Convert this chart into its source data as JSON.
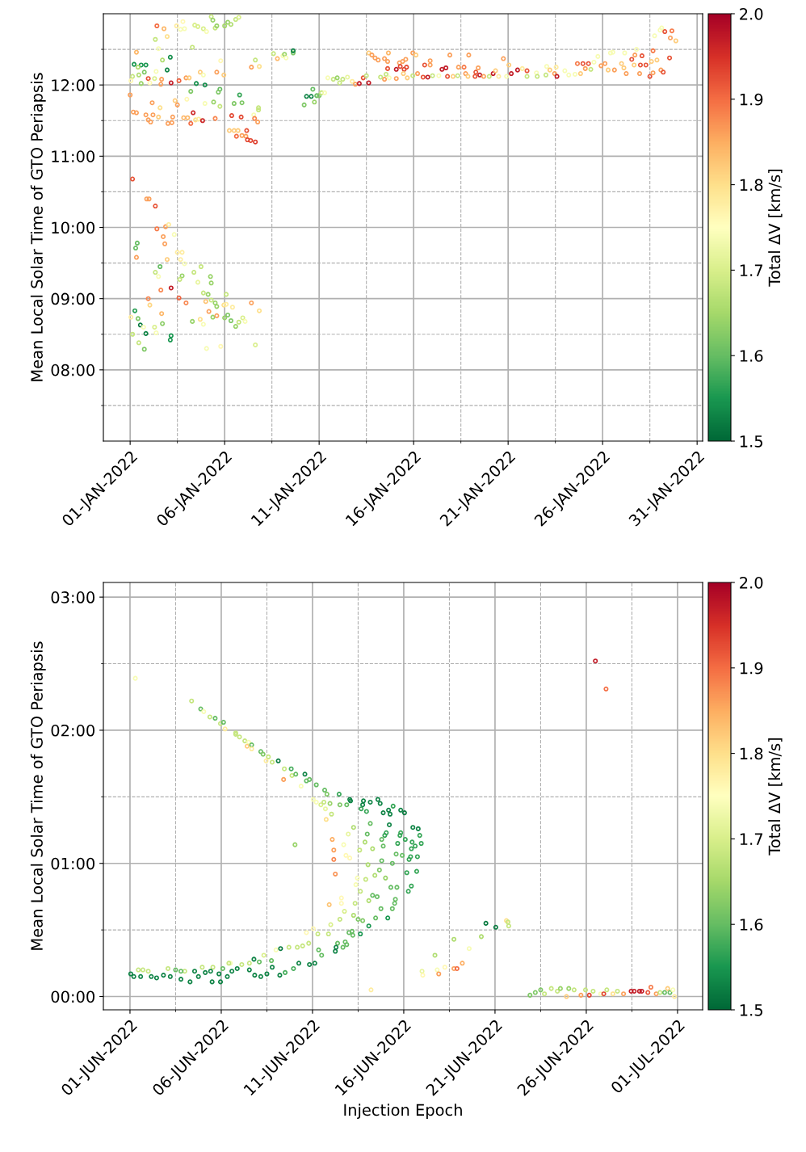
{
  "chart_data": [
    {
      "type": "scatter",
      "ylabel": "Mean Local Solar Time of GTO Periapsis",
      "clabel": "Total ΔV [km/s]",
      "clim": [
        1.5,
        2.0
      ],
      "cticks": [
        1.5,
        1.6,
        1.7,
        1.8,
        1.9,
        {
          "value": 2,
          "label": "2.0"
        }
      ],
      "grid": true,
      "marker": "circle",
      "xlim": [
        "2021-12-30T14:00",
        "2022-01-31T07:00"
      ],
      "xticks": [
        {
          "value": "2022-01-01",
          "label": "01-JAN-2022"
        },
        {
          "value": "2022-01-03T12:00",
          "label": null
        },
        {
          "value": "2022-01-06",
          "label": "06-JAN-2022"
        },
        {
          "value": "2022-01-08T12:00",
          "label": null
        },
        {
          "value": "2022-01-11",
          "label": "11-JAN-2022"
        },
        {
          "value": "2022-01-13T12:00",
          "label": null
        },
        {
          "value": "2022-01-16",
          "label": "16-JAN-2022"
        },
        {
          "value": "2022-01-18T12:00",
          "label": null
        },
        {
          "value": "2022-01-21",
          "label": "21-JAN-2022"
        },
        {
          "value": "2022-01-23T12:00",
          "label": null
        },
        {
          "value": "2022-01-26",
          "label": "26-JAN-2022"
        },
        {
          "value": "2022-01-28T12:00",
          "label": null
        },
        {
          "value": "2022-01-31",
          "label": "31-JAN-2022"
        }
      ],
      "ylim": [
        7.0,
        13.0
      ],
      "yticks": [
        {
          "value": 7.5,
          "label": null
        },
        {
          "value": 8,
          "label": "08:00"
        },
        {
          "value": 8.5,
          "label": null
        },
        {
          "value": 9,
          "label": "09:00"
        },
        {
          "value": 9.5,
          "label": null
        },
        {
          "value": 10,
          "label": "10:00"
        },
        {
          "value": 10.5,
          "label": null
        },
        {
          "value": 11,
          "label": "11:00"
        },
        {
          "value": 11.5,
          "label": null
        },
        {
          "value": 12,
          "label": "12:00"
        },
        {
          "value": 12.5,
          "label": null
        }
      ],
      "x": [
        "2022-01-01T03:00",
        "2022-01-01T21:00",
        "2022-01-02T00:00",
        "2022-01-02T08:00",
        "2022-01-02T10:00",
        "2022-01-02T21:00",
        "2022-01-03T01:00",
        "2022-01-02T18:00",
        "2022-01-02T20:00",
        "2022-01-03T08:00",
        "2022-01-01T09:00",
        "2022-01-01T07:00",
        "2022-01-01T08:00",
        "2022-01-03T12:00",
        "2022-01-03T18:00",
        "2022-01-02T23:00",
        "2022-01-03T16:00",
        "2022-01-03T21:00",
        "2022-01-02T14:00",
        "2022-01-02T08:00",
        "2022-01-02T12:00",
        "2022-01-03T18:00",
        "2022-01-03T15:00",
        "2022-01-04T09:00",
        "2022-01-04T18:00",
        "2022-01-04T14:00",
        "2022-01-05T06:00",
        "2022-01-05T07:00",
        "2022-01-02T15:00",
        "2022-01-03T04:00",
        "2022-01-03T14:00",
        "2022-01-03T23:00",
        "2022-01-04T21:00",
        "2022-01-05T03:00",
        "2022-01-05T00:00",
        "2022-01-05T07:00",
        "2022-01-05T12:00",
        "2022-01-05T14:00",
        "2022-01-05T23:00",
        "2022-01-06T02:00",
        "2022-01-06T10:00",
        "2022-01-06T02:00",
        "2022-01-07T10:00",
        "2022-01-07T20:00",
        "2022-01-01T23:00",
        "2022-01-02T01:00",
        "2022-01-01T06:00",
        "2022-01-01T01:00",
        "2022-01-01T10:00",
        "2022-01-01T13:00",
        "2022-01-01T17:00",
        "2022-01-02T16:00",
        "2022-01-02T17:00",
        "2022-01-02T07:00",
        "2022-01-02T09:00",
        "2022-01-01T03:00",
        "2022-01-01T20:00",
        "2022-01-03T04:00",
        "2022-01-03T03:00",
        "2022-01-01T11:00",
        "2022-01-01T18:00",
        "2022-01-05T01:00",
        "2022-01-05T19:00",
        "2022-01-07T15:00",
        "2022-01-04T07:00",
        "2022-01-04T17:00",
        "2022-01-04T21:00",
        "2022-01-05T04:00",
        "2022-01-05T09:00",
        "2022-01-05T14:00",
        "2022-01-06T00:00",
        "2022-01-06T04:00",
        "2022-01-06T08:00",
        "2022-01-06T14:00",
        "2022-01-06T18:00",
        "2022-01-06T23:00",
        "2022-01-07T02:00",
        "2022-01-02T10:00",
        "2022-01-02T19:00",
        "2022-01-03T11:00",
        "2022-01-03T19:00",
        "2022-01-03T16:00",
        "2022-01-03T21:00",
        "2022-01-04T10:00",
        "2022-01-04T14:00",
        "2022-01-04T21:00",
        "2022-01-05T01:00",
        "2022-01-05T07:00",
        "2022-01-05T09:00",
        "2022-01-05T12:00",
        "2022-01-05T14:00",
        "2022-01-06T00:00",
        "2022-01-06T04:00",
        "2022-01-06T08:00",
        "2022-01-06T14:00",
        "2022-01-06T18:00",
        "2022-01-02T08:00",
        "2022-01-02T23:00",
        "2022-01-01T08:00",
        "2022-01-02T12:00",
        "2022-01-04T07:00",
        "2022-01-03T03:00",
        "2022-01-02T17:00",
        "2022-01-01T05:00",
        "2022-01-01T14:00",
        "2022-01-01T20:00",
        "2022-01-01T10:00",
        "2022-01-01T18:00",
        "2022-01-02T23:00",
        "2022-01-02T09:00",
        "2022-01-05T19:00",
        "2022-01-04T17:00",
        "2022-01-04T21:00",
        "2022-01-05T14:00",
        "2022-01-05T23:00",
        "2022-01-01T03:00",
        "2022-01-01T11:00",
        "2022-01-01T23:00",
        "2022-01-02T07:00",
        "2022-01-02T16:00",
        "2022-01-01T01:00",
        "2022-01-01T14:00",
        "2022-01-02T01:00",
        "2022-01-02T15:00",
        "2022-01-03T04:00",
        "2022-01-03T14:00",
        "2022-01-03T23:00",
        "2022-01-04T03:00",
        "2022-01-04T12:00",
        "2022-01-04T23:00",
        "2022-01-07T10:00",
        "2022-01-07T15:00",
        "2022-01-07T20:00",
        "2022-01-01T00:00",
        "2022-01-04T05:00",
        "2022-01-05T18:00",
        "2022-01-05T16:00",
        "2022-01-02T04:00",
        "2022-01-03T09:00",
        "2022-01-03T12:00",
        "2022-01-04T00:00",
        "2022-01-02T14:00",
        "2022-01-04T23:00",
        "2022-01-05T10:00",
        "2022-01-05T18:00",
        "2022-01-06T19:00",
        "2022-01-06T12:00",
        "2022-01-06T22:00",
        "2022-01-07T19:00",
        "2022-01-07T19:00",
        "2022-01-07T13:00",
        "2022-01-01T04:00",
        "2022-01-01T08:00",
        "2022-01-01T20:00",
        "2022-01-02T05:00",
        "2022-01-02T12:00",
        "2022-01-01T23:00",
        "2022-01-02T02:00",
        "2022-01-03T00:00",
        "2022-01-03T05:00",
        "2022-01-03T06:00",
        "2022-01-03T20:00",
        "2022-01-04T01:00",
        "2022-01-04T05:00",
        "2022-01-04T08:00",
        "2022-01-04T11:00",
        "2022-01-04T15:00",
        "2022-01-04T20:00",
        "2022-01-05T12:00",
        "2022-01-06T09:00",
        "2022-01-06T21:00",
        "2022-01-07T14:00",
        "2022-01-07T18:00",
        "2022-01-06T06:00",
        "2022-01-06T12:00",
        "2022-01-06T17:00",
        "2022-01-07T04:00",
        "2022-01-06T15:00",
        "2022-01-06T22:00",
        "2022-01-07T03:00",
        "2022-01-07T05:00",
        "2022-01-07T09:00",
        "2022-01-07T15:00",
        "2022-01-08T14:00",
        "2022-01-08T19:00",
        "2022-01-09T02:00",
        "2022-01-09T04:00",
        "2022-01-09T06:00",
        "2022-01-09T15:00",
        "2022-01-09T15:00",
        "2022-01-10T05:00",
        "2022-01-10T08:00",
        "2022-01-10T14:00",
        "2022-01-10T16:00",
        "2022-01-10T18:00",
        "2022-01-10T21:00",
        "2022-01-11T00:00",
        "2022-01-11T03:00",
        "2022-01-11T07:00",
        "2022-01-11T11:00",
        "2022-01-11T18:00",
        "2022-01-11T23:00",
        "2022-01-12T02:00",
        "2022-01-12T06:00",
        "2022-01-12T12:00",
        "2022-01-12T18:00",
        "2022-01-12T22:00",
        "2022-01-13T03:00",
        "2022-01-13T08:00",
        "2022-01-13T12:00",
        "2022-01-13T15:00",
        "2022-01-13T15:00",
        "2022-01-13T19:00",
        "2022-01-13T23:00",
        "2022-01-14T03:00",
        "2022-01-14T11:00",
        "2022-01-14T11:00",
        "2022-01-14T16:00",
        "2022-01-14T15:00",
        "2022-01-14T13:00",
        "2022-01-14T15:00",
        "2022-01-14T06:00",
        "2022-01-14T17:00",
        "2022-01-15T02:00",
        "2022-01-15T06:00",
        "2022-01-15T10:00",
        "2022-01-15T14:00",
        "2022-01-15T02:00",
        "2022-01-15T07:00",
        "2022-01-15T12:00",
        "2022-01-15T15:00",
        "2022-01-15T11:00",
        "2022-01-15T16:00",
        "2022-01-15T23:00",
        "2022-01-16T03:00",
        "2022-01-15T23:00",
        "2022-01-16T05:00",
        "2022-01-16T12:00",
        "2022-01-16T18:00",
        "2022-01-16T14:00",
        "2022-01-16T21:00",
        "2022-01-16T21:00",
        "2022-01-17T00:00",
        "2022-01-17T08:00",
        "2022-01-17T12:00",
        "2022-01-17T17:00",
        "2022-01-17T19:00",
        "2022-01-17T22:00",
        "2022-01-18T02:00",
        "2022-01-18T08:00",
        "2022-01-18T09:00",
        "2022-01-18T16:00",
        "2022-01-18T18:00",
        "2022-01-18T22:00",
        "2022-01-18T21:00",
        "2022-01-19T06:00",
        "2022-01-19T07:00",
        "2022-01-19T10:00",
        "2022-01-19T12:00",
        "2022-01-19T17:00",
        "2022-01-20T00:00",
        "2022-01-20T05:00",
        "2022-01-20T08:00",
        "2022-01-20T12:00",
        "2022-01-20T18:00",
        "2022-01-20T22:00",
        "2022-01-21T01:00",
        "2022-01-21T04:00",
        "2022-01-21T12:00",
        "2022-01-21T18:00",
        "2022-01-22T00:00",
        "2022-01-22T00:00",
        "2022-01-22T12:00",
        "2022-01-22T13:00",
        "2022-01-23T00:00",
        "2022-01-23T01:00",
        "2022-01-23T05:00",
        "2022-01-23T11:00",
        "2022-01-23T13:00",
        "2022-01-23T14:00",
        "2022-01-24T00:00",
        "2022-01-24T05:00",
        "2022-01-24T13:00",
        "2022-01-24T16:00",
        "2022-01-24T20:00",
        "2022-01-24T23:00",
        "2022-01-25T02:00",
        "2022-01-25T06:00",
        "2022-01-25T09:00",
        "2022-01-25T13:00",
        "2022-01-25T18:00",
        "2022-01-25T22:00",
        "2022-01-26T03:00",
        "2022-01-26T07:00",
        "2022-01-26T10:00",
        "2022-01-26T13:00",
        "2022-01-26T15:00",
        "2022-01-27T00:00",
        "2022-01-27T03:00",
        "2022-01-27T04:00",
        "2022-01-27T06:00",
        "2022-01-27T13:00",
        "2022-01-27T16:00",
        "2022-01-27T17:00",
        "2022-01-27T19:00",
        "2022-01-27T23:00",
        "2022-01-28T00:00",
        "2022-01-28T02:00",
        "2022-01-28T07:00",
        "2022-01-28T12:00",
        "2022-01-28T14:00",
        "2022-01-28T16:00",
        "2022-01-28T16:00",
        "2022-01-28T18:00",
        "2022-01-28T21:00",
        "2022-01-29T01:00",
        "2022-01-29T03:00",
        "2022-01-29T02:00",
        "2022-01-29T05:00",
        "2022-01-29T07:00",
        "2022-01-29T13:00",
        "2022-01-29T14:00",
        "2022-01-29T16:00",
        "2022-01-29T21:00"
      ],
      "values": [
        10.68,
        10.4,
        10.4,
        10.3,
        9.98,
        10.01,
        10.04,
        9.87,
        9.77,
        9.9,
        9.78,
        9.71,
        9.58,
        9.65,
        9.65,
        9.55,
        9.55,
        9.49,
        9.45,
        9.37,
        9.31,
        9.32,
        9.27,
        9.37,
        9.45,
        9.23,
        9.31,
        9.22,
        9.12,
        9.15,
        9.01,
        8.94,
        9.08,
        9.06,
        8.96,
        8.98,
        8.94,
        8.89,
        8.91,
        8.92,
        8.88,
        9.06,
        8.94,
        8.83,
        9.0,
        8.91,
        8.83,
        8.74,
        8.72,
        8.63,
        8.6,
        8.79,
        8.65,
        8.6,
        8.52,
        8.5,
        8.51,
        8.48,
        8.42,
        8.38,
        8.29,
        8.3,
        8.33,
        8.35,
        8.68,
        8.71,
        8.64,
        8.82,
        8.74,
        8.76,
        8.73,
        8.77,
        8.69,
        8.61,
        8.67,
        8.73,
        8.68,
        12.83,
        12.79,
        12.83,
        12.89,
        12.78,
        12.79,
        12.84,
        12.82,
        12.79,
        12.75,
        12.96,
        12.91,
        12.8,
        12.83,
        12.83,
        12.88,
        12.85,
        12.92,
        12.95,
        12.64,
        12.68,
        12.46,
        12.51,
        12.53,
        12.39,
        12.35,
        12.29,
        12.28,
        12.28,
        12.25,
        12.18,
        12.21,
        12.19,
        12.34,
        12.18,
        12.14,
        12.18,
        12.14,
        12.12,
        12.14,
        12.09,
        12.09,
        12.08,
        12.06,
        12.02,
        12.03,
        12.01,
        12.03,
        12.06,
        12.1,
        12.1,
        12.02,
        12.0,
        12.25,
        12.35,
        12.26,
        11.86,
        11.91,
        11.94,
        11.9,
        11.75,
        11.78,
        11.72,
        11.8,
        11.68,
        11.74,
        11.76,
        11.7,
        11.86,
        11.74,
        11.75,
        11.68,
        11.65,
        11.58,
        11.62,
        11.61,
        11.58,
        11.58,
        11.55,
        11.51,
        11.48,
        11.46,
        11.47,
        11.55,
        11.54,
        11.54,
        11.46,
        11.61,
        11.51,
        11.52,
        11.5,
        11.53,
        11.57,
        11.55,
        11.53,
        11.48,
        11.36,
        11.36,
        11.36,
        11.36,
        11.28,
        11.29,
        11.28,
        11.23,
        11.22,
        11.2,
        12.44,
        12.37,
        12.41,
        12.43,
        12.38,
        12.45,
        12.48,
        11.72,
        11.84,
        11.84,
        11.94,
        11.76,
        11.85,
        11.85,
        11.89,
        11.89,
        12.1,
        12.08,
        12.1,
        12.03,
        12.08,
        12.11,
        12.05,
        12.01,
        12.02,
        12.1,
        12.13,
        12.03,
        12.45,
        12.42,
        12.38,
        12.35,
        12.37,
        12.08,
        12.45,
        12.33,
        12.15,
        12.23,
        12.11,
        12.1,
        12.09,
        12.31,
        12.33,
        12.36,
        12.22,
        12.26,
        12.22,
        12.25,
        12.16,
        12.1,
        12.45,
        12.42,
        12.13,
        12.16,
        12.11,
        12.11,
        12.28,
        12.28,
        12.34,
        12.13,
        12.13,
        12.22,
        12.24,
        12.12,
        12.42,
        12.12,
        12.13,
        12.25,
        12.25,
        12.16,
        12.42,
        12.12,
        12.12,
        12.18,
        12.24,
        12.14,
        12.12,
        12.12,
        12.16,
        12.2,
        12.12,
        12.37,
        12.12,
        12.28,
        12.16,
        12.21,
        12.23,
        12.2,
        12.12,
        12.17,
        12.12,
        12.14,
        12.26,
        12.21,
        12.16,
        12.25,
        12.12,
        12.2,
        12.14,
        12.15,
        12.3,
        12.16,
        12.3,
        12.23,
        12.3,
        12.22,
        12.32,
        12.4,
        12.27,
        12.3,
        12.21,
        12.45,
        12.46,
        12.21,
        12.3,
        12.24,
        12.45,
        12.16,
        12.36,
        12.28,
        12.42,
        12.5,
        12.16,
        12.28,
        12.41,
        12.28,
        12.12,
        12.33,
        12.48,
        12.17,
        12.69,
        12.35,
        12.77,
        12.8,
        12.21,
        12.18,
        12.75,
        12.38,
        12.66,
        12.76,
        12.62
      ],
      "cvalues": [
        1.92,
        1.86,
        1.86,
        1.92,
        1.89,
        1.86,
        1.78,
        1.86,
        1.86,
        1.74,
        1.6,
        1.6,
        1.86,
        1.78,
        1.78,
        1.82,
        1.78,
        1.74,
        1.6,
        1.68,
        1.74,
        1.64,
        1.68,
        1.68,
        1.68,
        1.72,
        1.64,
        1.64,
        1.88,
        1.97,
        1.91,
        1.88,
        1.68,
        1.64,
        1.83,
        1.68,
        1.64,
        1.64,
        1.8,
        1.78,
        1.78,
        1.68,
        1.86,
        1.8,
        1.88,
        1.81,
        1.56,
        1.78,
        1.62,
        1.52,
        1.74,
        1.84,
        1.63,
        1.7,
        1.74,
        1.68,
        1.53,
        1.55,
        1.55,
        1.68,
        1.62,
        1.74,
        1.76,
        1.7,
        1.64,
        1.8,
        1.74,
        1.86,
        1.64,
        1.86,
        1.64,
        1.62,
        1.62,
        1.64,
        1.68,
        1.7,
        1.74,
        1.9,
        1.84,
        1.78,
        1.76,
        1.74,
        1.74,
        1.7,
        1.7,
        1.7,
        1.74,
        1.68,
        1.64,
        1.68,
        1.64,
        1.65,
        1.64,
        1.66,
        1.68,
        1.7,
        1.68,
        1.8,
        1.84,
        1.74,
        1.68,
        1.54,
        1.66,
        1.55,
        1.55,
        1.55,
        1.66,
        1.62,
        1.53,
        1.74,
        1.76,
        1.82,
        1.74,
        1.86,
        1.82,
        1.68,
        1.66,
        1.92,
        1.7,
        1.86,
        1.76,
        1.64,
        1.76,
        1.86,
        1.97,
        1.91,
        1.86,
        1.82,
        1.54,
        1.54,
        1.86,
        1.68,
        1.8,
        1.86,
        1.62,
        1.6,
        1.62,
        1.86,
        1.82,
        1.86,
        1.76,
        1.8,
        1.74,
        1.64,
        1.68,
        1.57,
        1.62,
        1.62,
        1.68,
        1.68,
        1.74,
        1.86,
        1.86,
        1.86,
        1.86,
        1.82,
        1.86,
        1.86,
        1.86,
        1.86,
        1.86,
        1.84,
        1.84,
        1.9,
        1.96,
        1.8,
        1.78,
        1.96,
        1.88,
        1.93,
        1.93,
        1.88,
        1.86,
        1.82,
        1.82,
        1.82,
        1.92,
        1.9,
        1.86,
        1.86,
        1.93,
        1.93,
        1.94,
        1.68,
        1.84,
        1.74,
        1.64,
        1.74,
        1.62,
        1.53,
        1.62,
        1.53,
        1.53,
        1.6,
        1.64,
        1.6,
        1.62,
        1.68,
        1.74,
        1.74,
        1.68,
        1.64,
        1.68,
        1.68,
        1.72,
        1.78,
        1.86,
        1.97,
        1.92,
        1.68,
        1.97,
        1.82,
        1.86,
        1.86,
        1.86,
        1.86,
        1.86,
        1.84,
        1.86,
        1.68,
        1.92,
        1.68,
        1.74,
        1.86,
        1.86,
        1.86,
        1.86,
        1.97,
        1.93,
        1.93,
        1.93,
        1.82,
        1.82,
        1.86,
        1.82,
        1.68,
        1.86,
        1.92,
        1.97,
        1.92,
        1.86,
        1.86,
        1.68,
        1.74,
        1.97,
        1.97,
        1.92,
        1.86,
        1.82,
        1.68,
        1.86,
        1.89,
        1.86,
        1.86,
        1.82,
        1.92,
        1.92,
        1.86,
        1.97,
        1.86,
        1.68,
        1.97,
        1.82,
        1.78,
        1.86,
        1.74,
        1.82,
        1.97,
        1.97,
        1.78,
        1.92,
        1.68,
        1.74,
        1.68,
        1.68,
        1.74,
        1.82,
        1.86,
        1.78,
        1.97,
        1.74,
        1.74,
        1.74,
        1.89,
        1.82,
        1.92,
        1.86,
        1.92,
        1.68,
        1.74,
        1.74,
        1.86,
        1.86,
        1.82,
        1.74,
        1.74,
        1.86,
        1.82,
        1.82,
        1.74,
        1.86,
        1.92,
        1.82,
        1.86,
        1.74,
        1.86,
        1.92,
        1.92,
        1.92,
        1.92,
        1.82,
        1.89,
        1.86,
        1.74,
        1.82,
        1.74,
        1.74,
        1.86,
        1.92,
        1.92,
        1.92,
        1.86,
        1.89,
        1.82
      ]
    },
    {
      "type": "scatter",
      "xlabel": "Injection Epoch",
      "ylabel": "Mean Local Solar Time of GTO Periapsis",
      "clabel": "Total ΔV [km/s]",
      "clim": [
        1.5,
        2.0
      ],
      "cticks": [
        1.5,
        1.6,
        1.7,
        1.8,
        1.9,
        {
          "value": 2,
          "label": "2.0"
        }
      ],
      "grid": true,
      "marker": "circle",
      "xlim": [
        "2022-05-30T13:00",
        "2022-07-02T09:00"
      ],
      "xticks": [
        {
          "value": "2022-06-01",
          "label": "01-JUN-2022"
        },
        {
          "value": "2022-06-03T12:00",
          "label": null
        },
        {
          "value": "2022-06-06",
          "label": "06-JUN-2022"
        },
        {
          "value": "2022-06-08T12:00",
          "label": null
        },
        {
          "value": "2022-06-11",
          "label": "11-JUN-2022"
        },
        {
          "value": "2022-06-13T12:00",
          "label": null
        },
        {
          "value": "2022-06-16",
          "label": "16-JUN-2022"
        },
        {
          "value": "2022-06-18T12:00",
          "label": null
        },
        {
          "value": "2022-06-21",
          "label": "21-JUN-2022"
        },
        {
          "value": "2022-06-23T12:00",
          "label": null
        },
        {
          "value": "2022-06-26",
          "label": "26-JUN-2022"
        },
        {
          "value": "2022-06-28T12:00",
          "label": null
        },
        {
          "value": "2022-07-01",
          "label": "01-JUL-2022"
        }
      ],
      "ylim": [
        -0.1,
        3.11
      ],
      "yticks": [
        {
          "value": 0,
          "label": "00:00"
        },
        {
          "value": 0.5,
          "label": null
        },
        {
          "value": 1,
          "label": "01:00"
        },
        {
          "value": 1.5,
          "label": null
        },
        {
          "value": 2,
          "label": "02:00"
        },
        {
          "value": 2.5,
          "label": null
        },
        {
          "value": 3,
          "label": "03:00"
        }
      ],
      "x": [
        "2022-06-01T07:00",
        "2022-06-04T09:00",
        "2022-06-04T21:00",
        "2022-06-05T01:00",
        "2022-06-05T09:00",
        "2022-06-05T16:00",
        "2022-06-05T23:00",
        "2022-06-06T03:00",
        "2022-06-06T05:00",
        "2022-06-06T19:00",
        "2022-06-06T19:00",
        "2022-06-07T00:00",
        "2022-06-07T07:00",
        "2022-06-07T12:00",
        "2022-06-07T10:00",
        "2022-06-07T16:00",
        "2022-06-07T16:00",
        "2022-06-08T04:00",
        "2022-06-08T07:00",
        "2022-06-08T14:00",
        "2022-06-08T11:00",
        "2022-06-08T19:00",
        "2022-06-09T03:00",
        "2022-06-09T11:00",
        "2022-06-09T20:00",
        "2022-06-09T10:00",
        "2022-06-09T21:00",
        "2022-06-10T02:00",
        "2022-06-10T14:00",
        "2022-06-10T16:00",
        "2022-06-10T20:00",
        "2022-06-10T09:00",
        "2022-06-11T05:00",
        "2022-06-11T16:00",
        "2022-06-11T19:00",
        "2022-06-12T11:00",
        "2022-06-11T01:00",
        "2022-06-11T05:00",
        "2022-06-11T11:00",
        "2022-06-11T15:00",
        "2022-06-11T23:00",
        "2022-06-11T17:00",
        "2022-06-12T01:00",
        "2022-06-11T18:00",
        "2022-06-12T12:00",
        "2022-06-12T21:00",
        "2022-06-13T01:00",
        "2022-06-13T02:00",
        "2022-06-13T19:00",
        "2022-06-13T18:00",
        "2022-06-13T16:00",
        "2022-06-13T23:00",
        "2022-06-14T04:00",
        "2022-06-14T14:00",
        "2022-06-14T17:00",
        "2022-06-14T21:00",
        "2022-06-15T04:00",
        "2022-06-15T06:00",
        "2022-06-15T10:00",
        "2022-06-15T20:00",
        "2022-06-16T01:00",
        "2022-06-13T06:00",
        "2022-06-12T23:00",
        "2022-06-14T04:00",
        "2022-06-14T00:00",
        "2022-06-15T05:00",
        "2022-06-15T01:00",
        "2022-06-14T23:00",
        "2022-06-14T19:00",
        "2022-06-15T20:00",
        "2022-06-15T19:00",
        "2022-06-16T02:00",
        "2022-06-16T12:00",
        "2022-06-16T19:00",
        "2022-06-16T21:00",
        "2022-06-16T23:00",
        "2022-06-16T11:00",
        "2022-06-16T15:00",
        "2022-06-16T10:00",
        "2022-06-16T18:00",
        "2022-06-16T09:00",
        "2022-06-16T07:00",
        "2022-06-15T22:00",
        "2022-06-15T14:00",
        "2022-06-15T16:00",
        "2022-06-14T21:00",
        "2022-06-14T07:00",
        "2022-06-13T21:00",
        "2022-06-13T14:00",
        "2022-06-12T17:00",
        "2022-06-12T02:00",
        "2022-06-12T04:00",
        "2022-06-12T04:00",
        "2022-06-12T06:00",
        "2022-06-10T01:00",
        "2022-06-12T20:00",
        "2022-06-13T01:00",
        "2022-06-14T01:00",
        "2022-06-14T19:00",
        "2022-06-15T09:00",
        "2022-06-14T16:00",
        "2022-06-14T10:00",
        "2022-06-15T00:00",
        "2022-06-16T04:00",
        "2022-06-16T17:00",
        "2022-06-13T11:00",
        "2022-06-13T22:00",
        "2022-06-13T09:00",
        "2022-06-15T07:00",
        "2022-06-15T15:00",
        "2022-06-16T10:00",
        "2022-06-16T06:00",
        "2022-06-13T15:00",
        "2022-06-14T07:00",
        "2022-06-14T13:00",
        "2022-06-15T13:00",
        "2022-06-15T12:00",
        "2022-06-14T02:00",
        "2022-06-13T08:00",
        "2022-06-12T14:00",
        "2022-06-12T14:00",
        "2022-06-11T22:00",
        "2022-06-12T18:00",
        "2022-06-13T06:00",
        "2022-06-14T18:00",
        "2022-06-15T09:00",
        "2022-06-14T11:00",
        "2022-06-15T03:00",
        "2022-06-12T12:00",
        "2022-06-13T12:00",
        "2022-06-13T18:00",
        "2022-06-14T02:00",
        "2022-06-12T00:00",
        "2022-06-11T01:00",
        "2022-06-10T16:00",
        "2022-06-11T07:00",
        "2022-06-11T21:00",
        "2022-06-13T00:00",
        "2022-06-13T04:00",
        "2022-06-13T05:00",
        "2022-06-13T15:00",
        "2022-06-12T09:00",
        "2022-06-12T07:00",
        "2022-06-12T06:00",
        "2022-06-12T16:00",
        "2022-06-12T19:00",
        "2022-06-12T21:00",
        "2022-06-11T08:00",
        "2022-06-11T12:00",
        "2022-06-11T03:00",
        "2022-06-10T20:00",
        "2022-06-10T19:00",
        "2022-06-10T11:00",
        "2022-06-10T04:00",
        "2022-06-09T17:00",
        "2022-06-09T00:00",
        "2022-06-09T06:00",
        "2022-06-10T06:00",
        "2022-06-09T23:00",
        "2022-06-09T12:00",
        "2022-06-09T05:00",
        "2022-06-08T08:00",
        "2022-06-07T19:00",
        "2022-06-07T13:00",
        "2022-06-08T02:00",
        "2022-06-08T18:00",
        "2022-06-08T19:00",
        "2022-06-08T12:00",
        "2022-06-08T04:00",
        "2022-06-07T20:00",
        "2022-06-07T13:00",
        "2022-06-07T03:00",
        "2022-06-06T12:00",
        "2022-06-06T10:00",
        "2022-06-06T21:00",
        "2022-06-06T14:00",
        "2022-06-06T08:00",
        "2022-06-06T02:00",
        "2022-06-05T21:00",
        "2022-06-05T23:00",
        "2022-06-05T13:00",
        "2022-06-05T10:00",
        "2022-06-05T12:00",
        "2022-06-05T03:00",
        "2022-06-04T23:00",
        "2022-06-04T13:00",
        "2022-06-04T18:00",
        "2022-06-04T07:00",
        "2022-06-04T00:00",
        "2022-06-03T19:00",
        "2022-06-03T12:00",
        "2022-06-03T02:00",
        "2022-06-03T19:00",
        "2022-06-03T05:00",
        "2022-06-02T20:00",
        "2022-06-02T11:00",
        "2022-06-02T04:00",
        "2022-06-02T00:00",
        "2022-06-01T17:00",
        "2022-06-01T11:00",
        "2022-06-01T14:00",
        "2022-06-01T01:00",
        "2022-06-01T05:00",
        "2022-06-14T05:00",
        "2022-06-17T00:00",
        "2022-06-17T01:00",
        "2022-06-26T12:00",
        "2022-06-27T02:00",
        "2022-06-20T12:00",
        "2022-06-21T01:00",
        "2022-06-21T15:00",
        "2022-06-21T17:00",
        "2022-06-21T18:00",
        "2022-06-18T18:00",
        "2022-06-20T06:00",
        "2022-06-19T14:00",
        "2022-06-17T17:00",
        "2022-06-19T05:00",
        "2022-06-18T18:00",
        "2022-06-18T22:00",
        "2022-06-18T06:00",
        "2022-06-17T20:00",
        "2022-06-17T22:00",
        "2022-06-22T22:00",
        "2022-06-23T05:00",
        "2022-06-23T12:00",
        "2022-06-23T17:00",
        "2022-06-24T02:00",
        "2022-06-24T10:00",
        "2022-06-24T14:00",
        "2022-06-24T22:00",
        "2022-06-25T01:00",
        "2022-06-25T08:00",
        "2022-06-25T17:00",
        "2022-06-25T23:00",
        "2022-06-26T04:00",
        "2022-06-26T09:00",
        "2022-06-26T19:00",
        "2022-06-26T23:00",
        "2022-06-27T03:00",
        "2022-06-27T11:00",
        "2022-06-27T17:00",
        "2022-06-28T01:00",
        "2022-06-28T11:00",
        "2022-06-28T15:00",
        "2022-06-28T22:00",
        "2022-06-29T01:00",
        "2022-06-29T09:00",
        "2022-06-29T13:00",
        "2022-06-29T20:00",
        "2022-06-30T01:00",
        "2022-06-30T07:00",
        "2022-06-30T11:00",
        "2022-06-30T14:00",
        "2022-06-30T18:00",
        "2022-06-30T20:00"
      ],
      "values": [
        2.39,
        2.22,
        2.16,
        2.14,
        2.1,
        2.09,
        2.05,
        2.06,
        2.01,
        1.98,
        1.97,
        1.95,
        1.92,
        1.91,
        1.88,
        1.89,
        1.86,
        1.84,
        1.82,
        1.8,
        1.77,
        1.76,
        1.77,
        1.71,
        1.71,
        1.63,
        1.66,
        1.67,
        1.67,
        1.62,
        1.63,
        1.58,
        1.59,
        1.55,
        1.52,
        1.52,
        1.48,
        1.46,
        1.44,
        1.46,
        1.45,
        1.41,
        1.37,
        1.33,
        1.44,
        1.44,
        1.48,
        1.47,
        1.47,
        1.44,
        1.41,
        1.39,
        1.46,
        1.48,
        1.45,
        1.38,
        1.4,
        1.37,
        1.43,
        1.4,
        1.38,
        1.27,
        1.22,
        1.3,
        1.22,
        1.29,
        1.23,
        1.21,
        1.18,
        1.23,
        1.21,
        1.18,
        1.27,
        1.26,
        1.21,
        1.15,
        1.16,
        1.13,
        1.11,
        1.05,
        1.05,
        1.03,
        1.06,
        1.07,
        1.15,
        1.13,
        1.11,
        1.16,
        1.1,
        1.14,
        1.18,
        1.1,
        1.03,
        0.92,
        1.14,
        1.06,
        1.04,
        0.99,
        1.02,
        1.0,
        0.95,
        0.91,
        0.89,
        0.93,
        0.94,
        0.89,
        0.88,
        0.84,
        0.82,
        0.82,
        0.83,
        0.79,
        0.79,
        0.76,
        0.75,
        0.73,
        0.7,
        0.72,
        0.7,
        0.74,
        0.7,
        0.69,
        0.64,
        0.61,
        0.66,
        0.66,
        0.59,
        0.59,
        0.58,
        0.58,
        0.57,
        0.53,
        0.54,
        0.51,
        0.48,
        0.47,
        0.47,
        0.48,
        0.49,
        0.46,
        0.47,
        0.4,
        0.37,
        0.34,
        0.37,
        0.41,
        0.39,
        0.35,
        0.31,
        0.25,
        0.24,
        0.4,
        0.38,
        0.37,
        0.37,
        0.35,
        0.36,
        0.25,
        0.21,
        0.18,
        0.16,
        0.31,
        0.28,
        0.25,
        0.26,
        0.27,
        0.22,
        0.17,
        0.15,
        0.16,
        0.2,
        0.24,
        0.25,
        0.25,
        0.21,
        0.19,
        0.15,
        0.21,
        0.17,
        0.11,
        0.22,
        0.19,
        0.11,
        0.18,
        0.22,
        0.19,
        0.15,
        0.11,
        0.19,
        0.19,
        0.2,
        0.21,
        0.13,
        0.15,
        0.16,
        0.14,
        0.15,
        0.19,
        0.2,
        0.2,
        0.15,
        0.17,
        0.15,
        0.05,
        0.19,
        0.16,
        2.52,
        2.31,
        0.55,
        0.52,
        0.57,
        0.56,
        0.53,
        0.43,
        0.45,
        0.36,
        0.31,
        0.25,
        0.21,
        0.21,
        0.22,
        0.2,
        0.17,
        0.01,
        0.03,
        0.05,
        0.02,
        0.06,
        0.04,
        0.06,
        0.0,
        0.06,
        0.05,
        0.01,
        0.05,
        0.01,
        0.04,
        0.02,
        0.02,
        0.05,
        0.02,
        0.04,
        0.02,
        0.04,
        0.04,
        0.04,
        0.04,
        0.03,
        0.07,
        0.02,
        0.03,
        0.03,
        0.06,
        0.03,
        0.05,
        0.0
      ],
      "cvalues": [
        1.74,
        1.68,
        1.6,
        1.74,
        1.68,
        1.6,
        1.68,
        1.6,
        1.78,
        1.68,
        1.68,
        1.68,
        1.68,
        1.74,
        1.82,
        1.6,
        1.78,
        1.6,
        1.62,
        1.68,
        1.78,
        1.68,
        1.52,
        1.68,
        1.58,
        1.86,
        1.68,
        1.6,
        1.53,
        1.6,
        1.6,
        1.74,
        1.6,
        1.6,
        1.62,
        1.57,
        1.74,
        1.74,
        1.7,
        1.68,
        1.64,
        1.72,
        1.68,
        1.8,
        1.62,
        1.6,
        1.53,
        1.53,
        1.53,
        1.53,
        1.57,
        1.57,
        1.53,
        1.53,
        1.53,
        1.53,
        1.53,
        1.53,
        1.57,
        1.53,
        1.52,
        1.66,
        1.72,
        1.6,
        1.6,
        1.53,
        1.57,
        1.57,
        1.6,
        1.57,
        1.57,
        1.57,
        1.53,
        1.53,
        1.57,
        1.57,
        1.57,
        1.57,
        1.57,
        1.57,
        1.57,
        1.57,
        1.6,
        1.6,
        1.57,
        1.6,
        1.66,
        1.66,
        1.68,
        1.74,
        1.85,
        1.86,
        1.88,
        1.87,
        1.64,
        1.76,
        1.76,
        1.66,
        1.6,
        1.6,
        1.62,
        1.66,
        1.64,
        1.57,
        1.57,
        1.74,
        1.68,
        1.74,
        1.6,
        1.6,
        1.57,
        1.57,
        1.68,
        1.6,
        1.6,
        1.6,
        1.6,
        1.66,
        1.68,
        1.76,
        1.76,
        1.83,
        1.7,
        1.66,
        1.6,
        1.6,
        1.6,
        1.55,
        1.68,
        1.62,
        1.62,
        1.55,
        1.7,
        1.76,
        1.76,
        1.68,
        1.68,
        1.6,
        1.6,
        1.6,
        1.55,
        1.6,
        1.53,
        1.53,
        1.6,
        1.6,
        1.6,
        1.6,
        1.6,
        1.53,
        1.53,
        1.68,
        1.68,
        1.68,
        1.68,
        1.74,
        1.52,
        1.53,
        1.58,
        1.58,
        1.53,
        1.7,
        1.53,
        1.68,
        1.6,
        1.6,
        1.53,
        1.53,
        1.53,
        1.53,
        1.53,
        1.68,
        1.74,
        1.68,
        1.53,
        1.53,
        1.53,
        1.6,
        1.53,
        1.53,
        1.68,
        1.53,
        1.53,
        1.53,
        1.68,
        1.53,
        1.53,
        1.53,
        1.68,
        1.6,
        1.6,
        1.68,
        1.53,
        1.53,
        1.53,
        1.53,
        1.53,
        1.68,
        1.68,
        1.68,
        1.53,
        1.53,
        1.53,
        1.78,
        1.72,
        1.76,
        1.97,
        1.9,
        1.52,
        1.52,
        1.8,
        1.68,
        1.68,
        1.66,
        1.66,
        1.74,
        1.66,
        1.85,
        1.86,
        1.9,
        1.76,
        1.74,
        1.86,
        1.62,
        1.62,
        1.62,
        1.68,
        1.68,
        1.68,
        1.64,
        1.82,
        1.64,
        1.68,
        1.86,
        1.68,
        1.93,
        1.68,
        1.74,
        1.93,
        1.68,
        1.8,
        1.68,
        1.86,
        1.97,
        1.97,
        1.97,
        1.97,
        1.92,
        1.89,
        1.86,
        1.68,
        1.6,
        1.82,
        1.6,
        1.74,
        1.78
      ]
    }
  ]
}
